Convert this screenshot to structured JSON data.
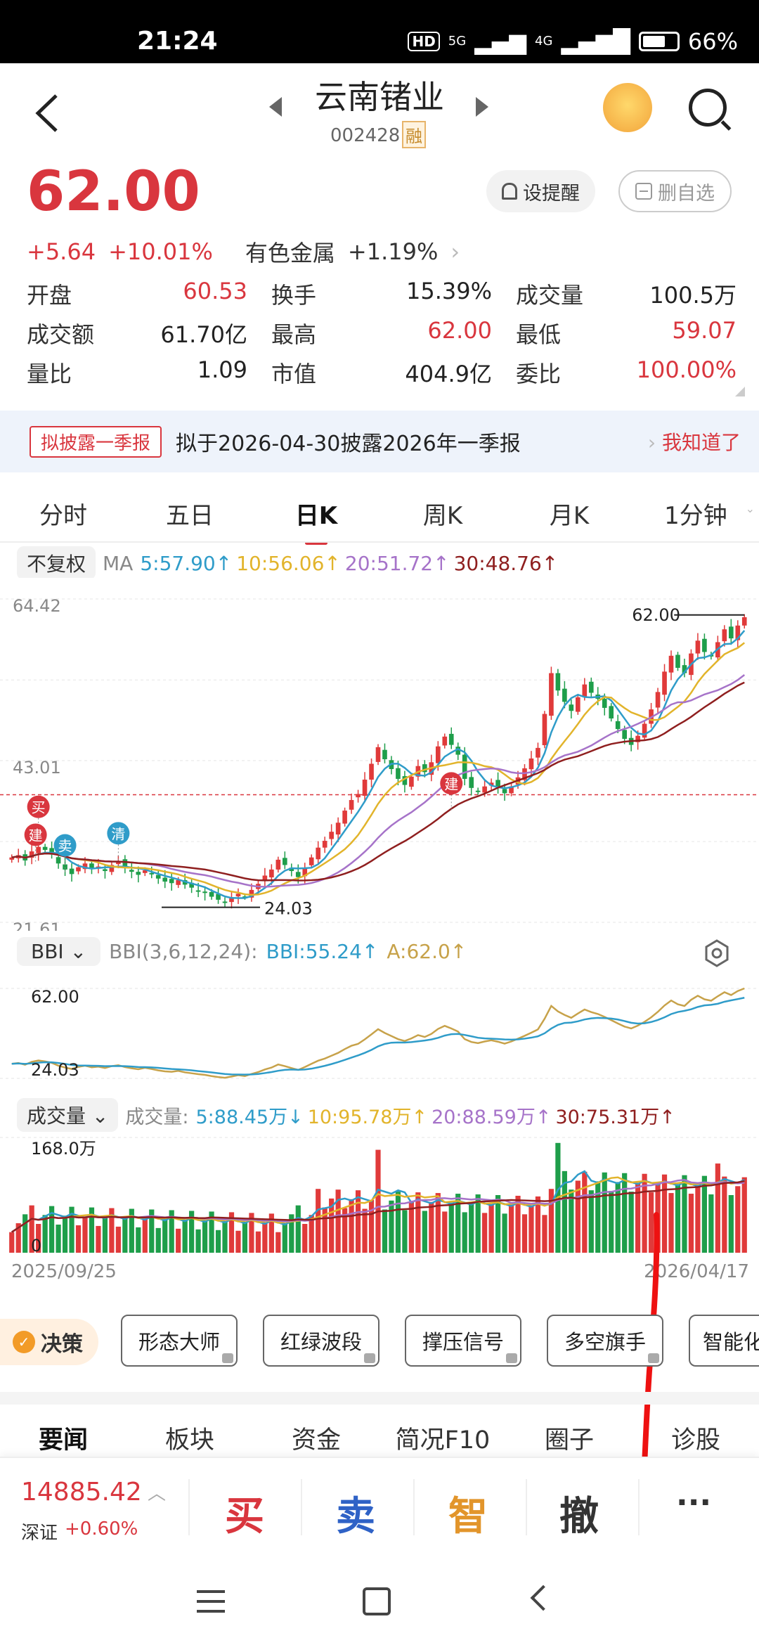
{
  "status_bar": {
    "time": "21:24",
    "hd": "HD",
    "net1": "5G",
    "net2": "4G",
    "battery": "66%"
  },
  "header": {
    "title": "云南锗业",
    "code": "002428",
    "margin_badge": "融"
  },
  "quote": {
    "price": "62.00",
    "change": "+5.64",
    "change_pct": "+10.01%",
    "sector": "有色金属",
    "sector_pct": "+1.19%",
    "set_alert": "设提醒",
    "remove_watch": "删自选"
  },
  "stats": [
    [
      {
        "k": "开盘",
        "v": "60.53",
        "c": "red"
      },
      {
        "k": "换手",
        "v": "15.39%",
        "c": "black"
      },
      {
        "k": "成交量",
        "v": "100.5万",
        "c": "black"
      }
    ],
    [
      {
        "k": "成交额",
        "v": "61.70亿",
        "c": "black"
      },
      {
        "k": "最高",
        "v": "62.00",
        "c": "red"
      },
      {
        "k": "最低",
        "v": "59.07",
        "c": "red"
      }
    ],
    [
      {
        "k": "量比",
        "v": "1.09",
        "c": "black"
      },
      {
        "k": "市值",
        "v": "404.9亿",
        "c": "black"
      },
      {
        "k": "委比",
        "v": "100.00%",
        "c": "red"
      }
    ]
  ],
  "notice": {
    "tag": "拟披露一季报",
    "text": "拟于2026-04-30披露2026年一季报",
    "action": "我知道了"
  },
  "tabs": [
    "分时",
    "五日",
    "日K",
    "周K",
    "月K",
    "1分钟"
  ],
  "active_tab": "日K",
  "ma_bar": {
    "adjust": "不复权",
    "label": "MA",
    "items": [
      {
        "text": "5:57.90↑",
        "color": "#2f9cc9"
      },
      {
        "text": "10:56.06↑",
        "color": "#e2b42b"
      },
      {
        "text": "20:51.72↑",
        "color": "#a673c9"
      },
      {
        "text": "30:48.76↑",
        "color": "#8f1f1f"
      }
    ]
  },
  "bbi_bar": {
    "selector": "BBI",
    "label": "BBI(3,6,12,24):",
    "bbi": "BBI:55.24↑",
    "a": "A:62.0↑"
  },
  "vol_bar": {
    "selector": "成交量",
    "label": "成交量:",
    "items": [
      {
        "text": "5:88.45万↓",
        "color": "#2f9cc9"
      },
      {
        "text": "10:95.78万↑",
        "color": "#e2b42b"
      },
      {
        "text": "20:88.59万↑",
        "color": "#a673c9"
      },
      {
        "text": "30:75.31万↑",
        "color": "#8f1f1f"
      }
    ]
  },
  "chart_data": {
    "type": "candlestick",
    "title": "",
    "y_axis_labels": [
      "64.42",
      "43.01",
      "21.61"
    ],
    "high_label": "62.00",
    "low_label": "24.03",
    "marker_labels": [
      "买",
      "建",
      "卖",
      "清",
      "建"
    ],
    "start_date": "2025/09/25",
    "end_date": "2026/04/17",
    "closes": [
      30.2,
      30.5,
      29.8,
      31.0,
      31.6,
      31.2,
      30.6,
      29.4,
      28.6,
      28.0,
      28.9,
      29.4,
      28.7,
      29.0,
      28.4,
      29.2,
      29.6,
      28.8,
      28.3,
      27.9,
      28.5,
      28.0,
      27.4,
      27.0,
      26.8,
      27.2,
      26.6,
      26.2,
      25.8,
      25.5,
      25.0,
      24.6,
      24.3,
      24.8,
      25.4,
      25.0,
      25.9,
      26.7,
      27.8,
      28.6,
      29.9,
      29.2,
      28.4,
      27.6,
      28.8,
      30.2,
      31.5,
      32.4,
      33.6,
      34.8,
      36.4,
      37.8,
      38.6,
      40.5,
      42.6,
      44.8,
      43.2,
      41.9,
      40.6,
      39.8,
      40.9,
      42.3,
      41.5,
      42.8,
      44.9,
      46.2,
      45.1,
      43.8,
      40.6,
      39.4,
      38.9,
      39.6,
      40.1,
      39.5,
      38.7,
      39.6,
      40.8,
      42.0,
      43.3,
      44.7,
      49.2,
      54.6,
      52.3,
      50.8,
      49.6,
      51.4,
      53.1,
      52.0,
      51.2,
      50.0,
      48.6,
      47.2,
      45.9,
      45.1,
      46.3,
      47.9,
      49.8,
      52.1,
      54.8,
      56.9,
      55.3,
      54.6,
      57.2,
      58.9,
      57.4,
      56.8,
      58.7,
      60.4,
      59.2,
      60.9,
      62.0
    ],
    "volume_axis": [
      "168.0万",
      "0"
    ],
    "bbi_axis": [
      "62.00",
      "24.03"
    ]
  },
  "strategy": {
    "label": "决策",
    "buttons": [
      "形态大师",
      "红绿波段",
      "撑压信号",
      "多空旗手",
      "智能化"
    ]
  },
  "news_tabs": [
    "要闻",
    "板块",
    "资金",
    "简况F10",
    "圈子",
    "诊股"
  ],
  "bottom": {
    "index_value": "14885.42",
    "index_name": "深证",
    "index_change": "+0.60%",
    "buy": "买",
    "sell": "卖",
    "smart": "智",
    "cancel": "撤",
    "more": "···"
  }
}
